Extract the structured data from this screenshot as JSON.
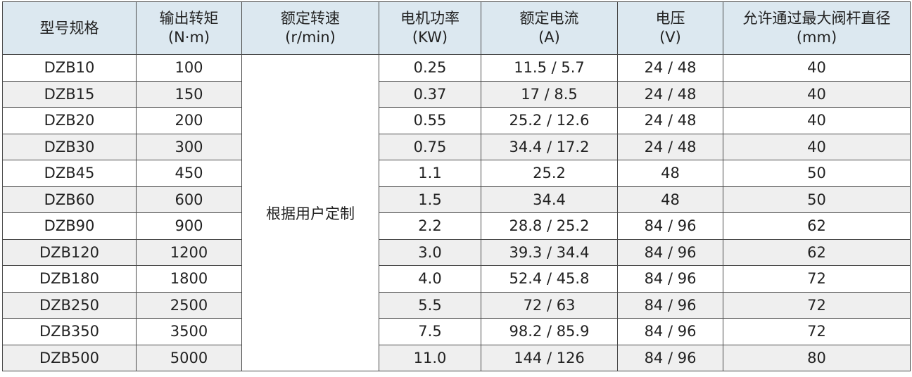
{
  "headers": [
    {
      "line1": "型号规格",
      "line2": ""
    },
    {
      "line1": "输出转矩",
      "line2": "(N·m)"
    },
    {
      "line1": "额定转速",
      "line2": "(r/min)"
    },
    {
      "line1": "电机功率",
      "line2": "(KW)"
    },
    {
      "line1": "额定电流",
      "line2": "(A)"
    },
    {
      "line1": "电压",
      "line2": "(V)"
    },
    {
      "line1": "允许通过最大阀杆直径",
      "line2": "(mm)"
    }
  ],
  "merged_speed": "根据用户定制",
  "rows": [
    [
      "DZB10",
      "100",
      "0.25",
      "11.5 / 5.7",
      "24 / 48",
      "40"
    ],
    [
      "DZB15",
      "150",
      "0.37",
      "17 / 8.5",
      "24 / 48",
      "40"
    ],
    [
      "DZB20",
      "200",
      "0.55",
      "25.2 / 12.6",
      "24 / 48",
      "40"
    ],
    [
      "DZB30",
      "300",
      "0.75",
      "34.4 / 17.2",
      "24 / 48",
      "40"
    ],
    [
      "DZB45",
      "450",
      "1.1",
      "25.2",
      "48",
      "50"
    ],
    [
      "DZB60",
      "600",
      "1.5",
      "34.4",
      "48",
      "50"
    ],
    [
      "DZB90",
      "900",
      "2.2",
      "28.8 / 25.2",
      "84 / 96",
      "62"
    ],
    [
      "DZB120",
      "1200",
      "3.0",
      "39.3 / 34.4",
      "84 / 96",
      "62"
    ],
    [
      "DZB180",
      "1800",
      "4.0",
      "52.4 / 45.8",
      "84 / 96",
      "72"
    ],
    [
      "DZB250",
      "2500",
      "5.5",
      "72 / 63",
      "84 / 96",
      "72"
    ],
    [
      "DZB350",
      "3500",
      "7.5",
      "98.2 / 85.9",
      "84 / 96",
      "72"
    ],
    [
      "DZB500",
      "5000",
      "11.0",
      "144 / 126",
      "84 / 96",
      "80"
    ]
  ],
  "colors": {
    "header_bg": "#dce8f0",
    "alt_row_bg": "#efefef",
    "border": "#4a4a4a"
  }
}
